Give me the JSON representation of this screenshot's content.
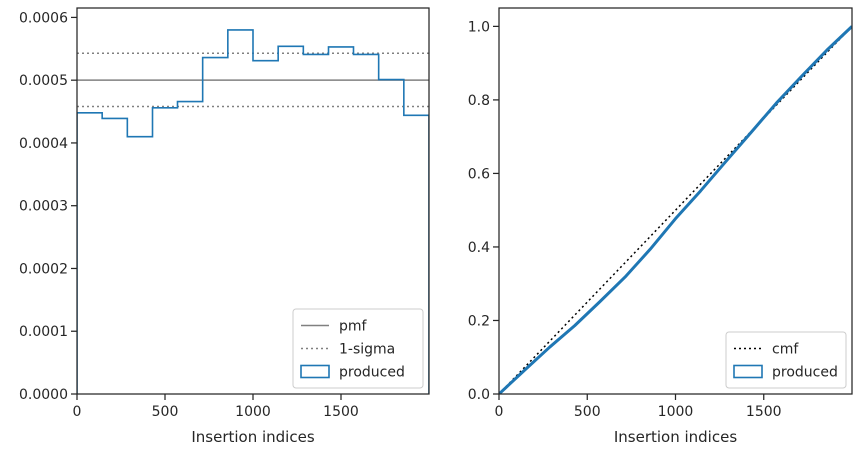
{
  "chart_data": [
    {
      "type": "histogram",
      "xlabel": "Insertion indices",
      "ylabel": "",
      "xlim": [
        0,
        2000
      ],
      "ylim": [
        0,
        0.000615
      ],
      "xticks": [
        0,
        500,
        1000,
        1500
      ],
      "xtick_labels": [
        "0",
        "500",
        "1000",
        "1500"
      ],
      "yticks": [
        0,
        0.0001,
        0.0002,
        0.0003,
        0.0004,
        0.0005,
        0.0006
      ],
      "ytick_labels": [
        "0.0000",
        "0.0001",
        "0.0002",
        "0.0003",
        "0.0004",
        "0.0005",
        "0.0006"
      ],
      "grid": false,
      "legend_position": "lower right",
      "reference_lines": [
        {
          "name": "pmf",
          "style": "solid",
          "color": "#808080",
          "y": 0.0005
        },
        {
          "name": "1-sigma",
          "style": "dotted",
          "color": "#808080",
          "y": [
            0.000458,
            0.000543
          ]
        }
      ],
      "series": [
        {
          "name": "produced",
          "color": "#1f77b4",
          "bin_edges": [
            0,
            143,
            286,
            429,
            571,
            714,
            857,
            1000,
            1143,
            1286,
            1429,
            1571,
            1714,
            1857,
            2000
          ],
          "values": [
            0.000448,
            0.000439,
            0.00041,
            0.000456,
            0.000466,
            0.000536,
            0.00058,
            0.000531,
            0.000554,
            0.000541,
            0.000553,
            0.000541,
            0.000501,
            0.000444
          ]
        }
      ]
    },
    {
      "type": "line",
      "xlabel": "Insertion indices",
      "ylabel": "",
      "xlim": [
        0,
        2000
      ],
      "ylim": [
        0,
        1.05
      ],
      "xticks": [
        0,
        500,
        1000,
        1500
      ],
      "xtick_labels": [
        "0",
        "500",
        "1000",
        "1500"
      ],
      "yticks": [
        0,
        0.2,
        0.4,
        0.6,
        0.8,
        1.0
      ],
      "ytick_labels": [
        "0.0",
        "0.2",
        "0.4",
        "0.6",
        "0.8",
        "1.0"
      ],
      "grid": false,
      "legend_position": "lower right",
      "series": [
        {
          "name": "cmf",
          "style": "dotted",
          "color": "#000000",
          "x": [
            0,
            2000
          ],
          "y": [
            0,
            1
          ]
        },
        {
          "name": "produced",
          "color": "#1f77b4",
          "x": [
            0,
            143,
            286,
            429,
            571,
            714,
            857,
            1000,
            1143,
            1286,
            1429,
            1571,
            1714,
            1857,
            2000
          ],
          "y": [
            0,
            0.064,
            0.127,
            0.186,
            0.251,
            0.318,
            0.394,
            0.477,
            0.553,
            0.633,
            0.712,
            0.791,
            0.864,
            0.935,
            1.0
          ]
        }
      ]
    }
  ]
}
